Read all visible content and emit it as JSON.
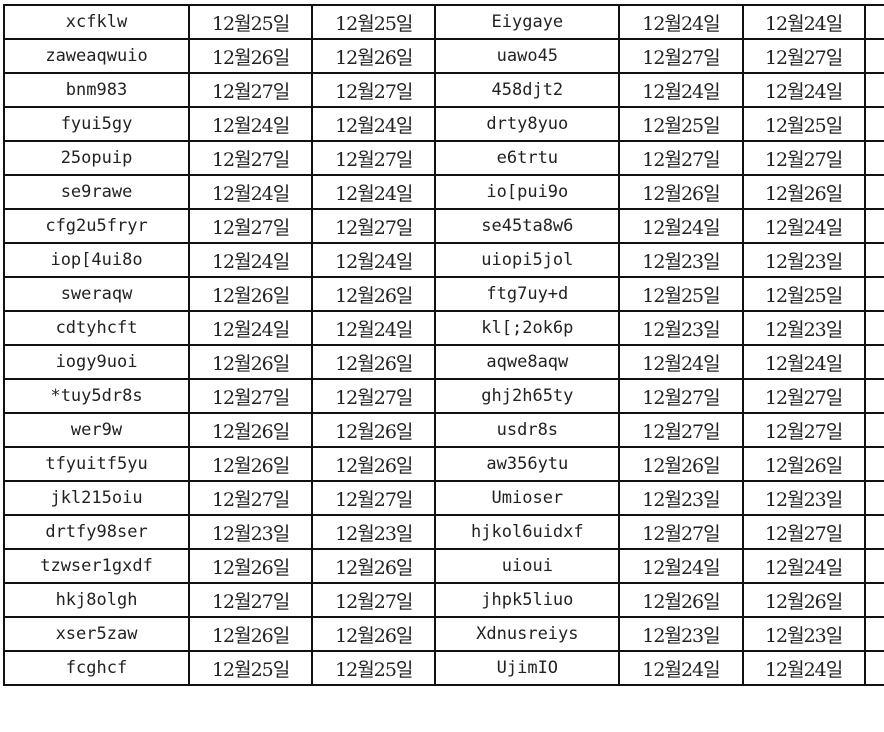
{
  "rows": [
    [
      "xcfklw",
      "12월25일",
      "12월25일",
      "Eiygaye",
      "12월24일",
      "12월24일"
    ],
    [
      "zaweaqwuio",
      "12월26일",
      "12월26일",
      "uawo45",
      "12월27일",
      "12월27일"
    ],
    [
      "bnm983",
      "12월27일",
      "12월27일",
      "458djt2",
      "12월24일",
      "12월24일"
    ],
    [
      "fyui5gy",
      "12월24일",
      "12월24일",
      "drty8yuo",
      "12월25일",
      "12월25일"
    ],
    [
      "25opuip",
      "12월27일",
      "12월27일",
      "e6trtu",
      "12월27일",
      "12월27일"
    ],
    [
      "se9rawe",
      "12월24일",
      "12월24일",
      "io[pui9o",
      "12월26일",
      "12월26일"
    ],
    [
      "cfg2u5fryr",
      "12월27일",
      "12월27일",
      "se45ta8w6",
      "12월24일",
      "12월24일"
    ],
    [
      "iop[4ui8o",
      "12월24일",
      "12월24일",
      "uiopi5jol",
      "12월23일",
      "12월23일"
    ],
    [
      "sweraqw",
      "12월26일",
      "12월26일",
      "ftg7uy+d",
      "12월25일",
      "12월25일"
    ],
    [
      "cdtyhcft",
      "12월24일",
      "12월24일",
      "kl[;2ok6p",
      "12월23일",
      "12월23일"
    ],
    [
      "iogy9uoi",
      "12월26일",
      "12월26일",
      "aqwe8aqw",
      "12월24일",
      "12월24일"
    ],
    [
      "*tuy5dr8s",
      "12월27일",
      "12월27일",
      "ghj2h65ty",
      "12월27일",
      "12월27일"
    ],
    [
      "wer9w",
      "12월26일",
      "12월26일",
      "usdr8s",
      "12월27일",
      "12월27일"
    ],
    [
      "tfyuitf5yu",
      "12월26일",
      "12월26일",
      "aw356ytu",
      "12월26일",
      "12월26일"
    ],
    [
      "jkl215oiu",
      "12월27일",
      "12월27일",
      "Umioser",
      "12월23일",
      "12월23일"
    ],
    [
      "drtfy98ser",
      "12월23일",
      "12월23일",
      "hjkol6uidxf",
      "12월27일",
      "12월27일"
    ],
    [
      "tzwser1gxdf",
      "12월26일",
      "12월26일",
      "uioui",
      "12월24일",
      "12월24일"
    ],
    [
      "hkj8olgh",
      "12월27일",
      "12월27일",
      "jhpk5liuo",
      "12월26일",
      "12월26일"
    ],
    [
      "xser5zaw",
      "12월26일",
      "12월26일",
      "Xdnusreiys",
      "12월23일",
      "12월23일"
    ],
    [
      "fcghcf",
      "12월25일",
      "12월25일",
      "UjimIO",
      "12월24일",
      "12월24일"
    ]
  ]
}
